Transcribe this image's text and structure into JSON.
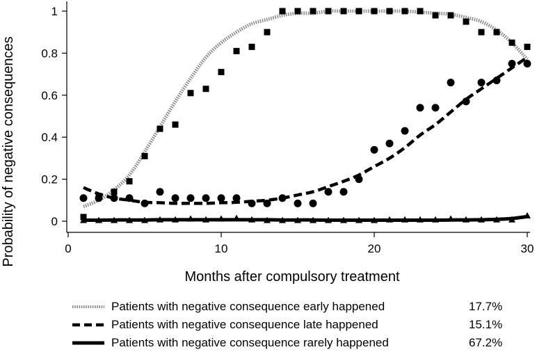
{
  "chart_data": {
    "type": "line",
    "title": "",
    "xlabel": "Months after compulsory treatment",
    "ylabel": "Probability of negative consequences",
    "xlim": [
      0,
      30
    ],
    "ylim": [
      0,
      1
    ],
    "xticks": [
      0,
      10,
      20,
      30
    ],
    "yticks": [
      0,
      0.2,
      0.4,
      0.6,
      0.8,
      1
    ],
    "ytick_labels": [
      "0",
      "0.2",
      "0.4",
      "0.6",
      "0.8",
      "1"
    ],
    "grid": false,
    "series": [
      {
        "name": "Patients with negative consequence early happened",
        "percent": "17.7%",
        "line_style": "dotted",
        "marker": "square",
        "x": [
          1,
          2,
          3,
          4,
          5,
          6,
          7,
          8,
          9,
          10,
          11,
          12,
          13,
          14,
          15,
          16,
          17,
          18,
          19,
          20,
          21,
          22,
          23,
          24,
          25,
          26,
          27,
          28,
          29,
          30
        ],
        "observed": [
          0.02,
          0.12,
          0.14,
          0.19,
          0.31,
          0.44,
          0.46,
          0.61,
          0.63,
          0.71,
          0.81,
          0.83,
          0.9,
          1.0,
          1.0,
          1.0,
          1.0,
          1.0,
          1.0,
          1.0,
          1.0,
          1.0,
          1.0,
          0.98,
          0.98,
          0.95,
          0.9,
          0.9,
          0.85,
          0.83
        ],
        "fitted": [
          0.07,
          0.1,
          0.15,
          0.22,
          0.33,
          0.45,
          0.57,
          0.68,
          0.78,
          0.85,
          0.9,
          0.94,
          0.96,
          0.98,
          0.99,
          0.99,
          1.0,
          1.0,
          1.0,
          1.0,
          1.0,
          1.0,
          0.995,
          0.99,
          0.985,
          0.97,
          0.95,
          0.91,
          0.85,
          0.77
        ]
      },
      {
        "name": "Patients with negative consequence late happened",
        "percent": "15.1%",
        "line_style": "dashed",
        "marker": "circle",
        "x": [
          1,
          2,
          3,
          4,
          5,
          6,
          7,
          8,
          9,
          10,
          11,
          12,
          13,
          14,
          15,
          16,
          17,
          18,
          19,
          20,
          21,
          22,
          23,
          24,
          25,
          26,
          27,
          28,
          29,
          30
        ],
        "observed": [
          0.11,
          0.11,
          0.11,
          0.11,
          0.085,
          0.14,
          0.11,
          0.11,
          0.11,
          0.11,
          0.11,
          0.085,
          0.085,
          0.11,
          0.085,
          0.085,
          0.14,
          0.14,
          0.2,
          0.34,
          0.37,
          0.43,
          0.54,
          0.54,
          0.66,
          0.57,
          0.66,
          0.67,
          0.75,
          0.75
        ],
        "fitted": [
          0.16,
          0.13,
          0.11,
          0.1,
          0.09,
          0.088,
          0.085,
          0.085,
          0.085,
          0.088,
          0.09,
          0.095,
          0.1,
          0.11,
          0.125,
          0.14,
          0.165,
          0.19,
          0.22,
          0.26,
          0.3,
          0.35,
          0.41,
          0.46,
          0.52,
          0.58,
          0.63,
          0.68,
          0.73,
          0.78
        ]
      },
      {
        "name": "Patients with negative consequence rarely happened",
        "percent": "67.2%",
        "line_style": "solid",
        "marker": "triangle",
        "x": [
          1,
          2,
          3,
          4,
          5,
          6,
          7,
          8,
          9,
          10,
          11,
          12,
          13,
          14,
          15,
          16,
          17,
          18,
          19,
          20,
          21,
          22,
          23,
          24,
          25,
          26,
          27,
          28,
          29,
          30
        ],
        "observed": [
          0.003,
          0.003,
          0.003,
          0.003,
          0.003,
          0.006,
          0.006,
          0.01,
          0.006,
          0.01,
          0.013,
          0.006,
          0.003,
          0.003,
          0.003,
          0.003,
          0.003,
          0.003,
          0.003,
          0.003,
          0.006,
          0.006,
          0.006,
          0.006,
          0.01,
          0.006,
          0.006,
          0.006,
          0.006,
          0.025
        ],
        "fitted": [
          0.005,
          0.005,
          0.006,
          0.006,
          0.006,
          0.007,
          0.007,
          0.007,
          0.007,
          0.007,
          0.007,
          0.007,
          0.007,
          0.006,
          0.006,
          0.006,
          0.005,
          0.005,
          0.005,
          0.005,
          0.005,
          0.005,
          0.005,
          0.005,
          0.006,
          0.006,
          0.007,
          0.009,
          0.013,
          0.022
        ]
      }
    ]
  },
  "colors": {
    "ink": "#000000",
    "dotted_line": "#8c8c8c"
  }
}
